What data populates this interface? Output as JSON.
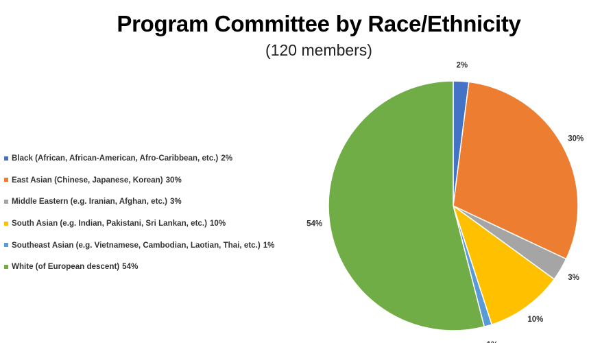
{
  "chart_data": {
    "type": "pie",
    "title": "Program Committee by Race/Ethnicity",
    "subtitle": "(120 members)",
    "legend_position": "left",
    "slices": [
      {
        "label": "Black (African, African-American, Afro-Caribbean, etc.)",
        "value": 2,
        "value_label": "2%",
        "color": "#4472C4"
      },
      {
        "label": "East Asian (Chinese, Japanese, Korean)",
        "value": 30,
        "value_label": "30%",
        "color": "#ED7D31"
      },
      {
        "label": "Middle Eastern (e.g. Iranian, Afghan, etc.)",
        "value": 3,
        "value_label": "3%",
        "color": "#A5A5A5"
      },
      {
        "label": "South Asian (e.g. Indian, Pakistani, Sri Lankan, etc.)",
        "value": 10,
        "value_label": "10%",
        "color": "#FFC000"
      },
      {
        "label": "Southeast Asian (e.g. Vietnamese, Cambodian, Laotian, Thai, etc.)",
        "value": 1,
        "value_label": "1%",
        "color": "#5B9BD5"
      },
      {
        "label": "White (of European descent)",
        "value": 54,
        "value_label": "54%",
        "color": "#70AD47"
      }
    ]
  }
}
